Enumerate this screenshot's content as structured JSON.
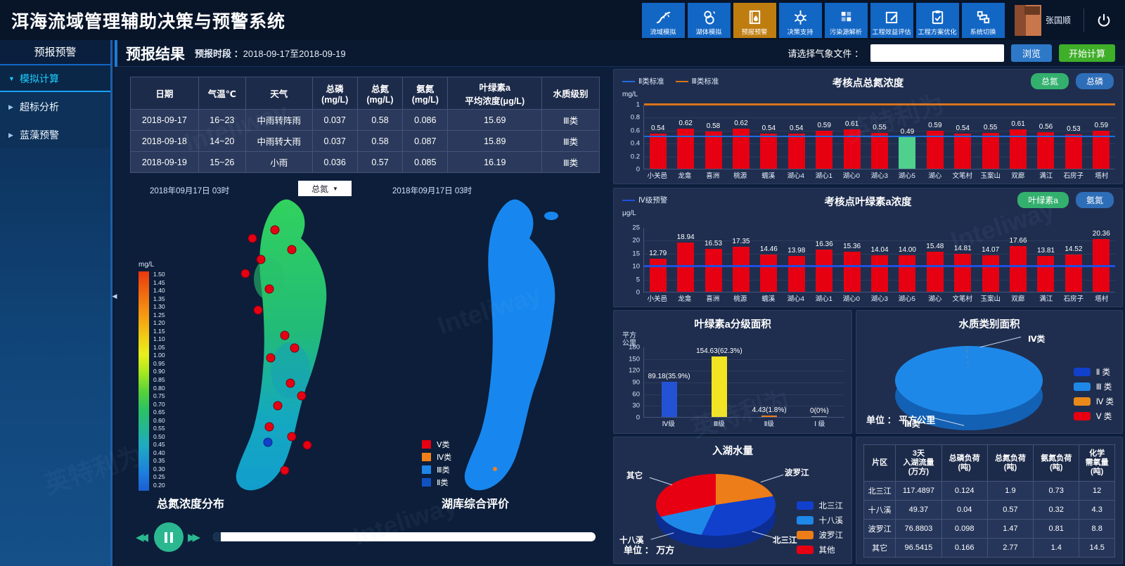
{
  "watermark": {
    "latin": "Inteliway",
    "cjk": "英特利为"
  },
  "header": {
    "title": "洱海流域管理辅助决策与预警系统",
    "user": "张国顺",
    "nav": [
      {
        "label": "流域模拟",
        "icon": "river-icon",
        "active": false
      },
      {
        "label": "湖体模拟",
        "icon": "lake-icon",
        "active": false
      },
      {
        "label": "预报预警",
        "icon": "forecast-icon",
        "active": true
      },
      {
        "label": "决策支持",
        "icon": "gear-icon",
        "active": false
      },
      {
        "label": "污染源解析",
        "icon": "grid-icon",
        "active": false
      },
      {
        "label": "工程效益评估",
        "icon": "edit-icon",
        "active": false
      },
      {
        "label": "工程方案优化",
        "icon": "clipboard-icon",
        "active": false
      },
      {
        "label": "系统切换",
        "icon": "switch-icon",
        "active": false
      }
    ]
  },
  "sidebar": {
    "title": "预报预警",
    "items": [
      {
        "label": "模拟计算",
        "active": true
      },
      {
        "label": "超标分析",
        "active": false
      },
      {
        "label": "蓝藻预警",
        "active": false
      }
    ]
  },
  "toolbar": {
    "title": "预报结果",
    "period_label": "预报时段 ：",
    "period": "2018-09-17至2018-09-19",
    "file_label": "请选择气象文件 ：",
    "browse": "浏览",
    "start": "开始计算"
  },
  "forecast_table": {
    "headers": [
      "日期",
      "气温℃",
      "天气",
      "总磷\n(mg/L)",
      "总氮\n(mg/L)",
      "氨氮\n(mg/L)",
      "叶绿素a\n平均浓度(μg/L)",
      "水质级别"
    ],
    "rows": [
      [
        "2018-09-17",
        "16~23",
        "中雨转阵雨",
        "0.037",
        "0.58",
        "0.086",
        "15.69",
        "Ⅲ类"
      ],
      [
        "2018-09-18",
        "14~20",
        "中雨转大雨",
        "0.037",
        "0.58",
        "0.087",
        "15.89",
        "Ⅲ类"
      ],
      [
        "2018-09-19",
        "15~26",
        "小雨",
        "0.036",
        "0.57",
        "0.085",
        "16.19",
        "Ⅲ类"
      ]
    ]
  },
  "maps": {
    "left": {
      "timestamp": "2018年09月17日 03时",
      "dropdown": "总氮",
      "caption": "总氮浓度分布",
      "colorbar_unit": "mg/L",
      "colorbar_ticks": [
        "1.50",
        "1.45",
        "1.40",
        "1.35",
        "1.30",
        "1.25",
        "1.20",
        "1.15",
        "1.10",
        "1.05",
        "1.00",
        "0.95",
        "0.90",
        "0.85",
        "0.80",
        "0.75",
        "0.70",
        "0.65",
        "0.60",
        "0.55",
        "0.50",
        "0.45",
        "0.40",
        "0.35",
        "0.30",
        "0.25",
        "0.20"
      ],
      "points_red": [
        [
          96,
          62
        ],
        [
          128,
          50
        ],
        [
          152,
          78
        ],
        [
          108,
          92
        ],
        [
          86,
          112
        ],
        [
          120,
          134
        ],
        [
          104,
          164
        ],
        [
          142,
          200
        ],
        [
          156,
          218
        ],
        [
          122,
          232
        ],
        [
          150,
          268
        ],
        [
          166,
          286
        ],
        [
          132,
          300
        ],
        [
          120,
          330
        ],
        [
          152,
          344
        ],
        [
          174,
          356
        ],
        [
          142,
          392
        ]
      ],
      "points_blue": [
        [
          118,
          352
        ]
      ]
    },
    "right": {
      "timestamp": "2018年09月17日 03时",
      "caption": "湖库综合评价",
      "legend": [
        {
          "label": "Ⅴ类",
          "color": "#e60012"
        },
        {
          "label": "Ⅳ类",
          "color": "#f18019"
        },
        {
          "label": "Ⅲ类",
          "color": "#1e86e8"
        },
        {
          "label": "Ⅱ类",
          "color": "#0f52c0"
        }
      ]
    }
  },
  "charts": {
    "tn": {
      "type": "bar",
      "title": "考核点总氮浓度",
      "unit": "mg/L",
      "buttons": [
        {
          "label": "总氮",
          "color": "#33b06e"
        },
        {
          "label": "总磷",
          "color": "#2e6db8"
        }
      ],
      "ref_lines": [
        {
          "label": "Ⅱ类标准",
          "color": "#1f6be0",
          "value": 0.5,
          "thick": 2
        },
        {
          "label": "Ⅲ类标准",
          "color": "#d9731a",
          "value": 1.0,
          "thick": 3
        }
      ],
      "ymax": 1,
      "yticks": [
        "1",
        "0.8",
        "0.6",
        "0.4",
        "0.2",
        "0"
      ],
      "categories": [
        "小关邑",
        "龙龛",
        "喜洲",
        "桃源",
        "蠕溪",
        "湖心4",
        "湖心1",
        "湖心0",
        "湖心3",
        "湖心5",
        "湖心",
        "文笔村",
        "玉案山",
        "双廊",
        "满江",
        "石房子",
        "塔村"
      ],
      "values": [
        "0.54",
        "0.62",
        "0.58",
        "0.62",
        "0.54",
        "0.54",
        "0.59",
        "0.61",
        "0.55",
        "0.49",
        "0.59",
        "0.54",
        "0.55",
        "0.61",
        "0.56",
        "0.53",
        "0.59"
      ],
      "bar_color": "#e60012",
      "highlight_index": 9,
      "highlight_color": "#4fd08c"
    },
    "chla": {
      "type": "bar",
      "title": "考核点叶绿素a浓度",
      "unit": "μg/L",
      "buttons": [
        {
          "label": "叶绿素a",
          "color": "#33b06e"
        },
        {
          "label": "氨氮",
          "color": "#2e6db8"
        }
      ],
      "ref_lines": [
        {
          "label": "Ⅳ级预警",
          "color": "#1f4fe0",
          "value": 10,
          "thick": 3
        }
      ],
      "ymax": 25,
      "yticks": [
        "25",
        "20",
        "15",
        "10",
        "5",
        "0"
      ],
      "categories": [
        "小关邑",
        "龙龛",
        "喜洲",
        "桃源",
        "蠕溪",
        "湖心4",
        "湖心1",
        "湖心0",
        "湖心3",
        "湖心5",
        "湖心",
        "文笔村",
        "玉案山",
        "双廊",
        "满江",
        "石房子",
        "塔村"
      ],
      "values": [
        "12.79",
        "18.94",
        "16.53",
        "17.35",
        "14.46",
        "13.98",
        "16.36",
        "15.36",
        "14.04",
        "14.00",
        "15.48",
        "14.81",
        "14.07",
        "17.66",
        "13.81",
        "14.52",
        "20.36"
      ],
      "bar_color": "#e60012",
      "highlight_index": -1,
      "highlight_color": "#e60012"
    },
    "chla_area": {
      "type": "bar",
      "title": "叶绿素a分级面积",
      "unit": "平方\n公里",
      "buttons": [],
      "ref_lines": [],
      "ymax": 180,
      "yticks": [
        "180",
        "150",
        "120",
        "90",
        "60",
        "30",
        "0"
      ],
      "categories": [
        "Ⅳ级",
        "Ⅲ级",
        "Ⅱ级",
        "Ⅰ 级"
      ],
      "values": [
        "89.18",
        "154.63",
        "4.43",
        "0"
      ],
      "labels": [
        "89.18(35.9%)",
        "154.63(62.3%)",
        "4.43(1.8%)",
        "0(0%)"
      ],
      "colors": [
        "#2353d4",
        "#f2e422",
        "#ed7d18",
        "#8899aa"
      ],
      "bar_color": "#2353d4",
      "highlight_index": -1,
      "highlight_color": "#2353d4"
    },
    "wq_pie": {
      "type": "pie",
      "title": "水质类别面积",
      "unit_label": "单位 ：",
      "unit": "平方公里",
      "slices": [
        {
          "label": "Ⅳ类",
          "color": "#e8891a",
          "pct": 1.2
        },
        {
          "label": "Ⅲ类",
          "color": "#1e88e8",
          "pct": 98.8
        }
      ],
      "legend": [
        {
          "label": "Ⅱ 类",
          "color": "#1140cc"
        },
        {
          "label": "Ⅲ 类",
          "color": "#1e88e8"
        },
        {
          "label": "Ⅳ 类",
          "color": "#e8891a"
        },
        {
          "label": "Ⅴ 类",
          "color": "#e60012"
        }
      ]
    },
    "inflow_pie": {
      "type": "pie",
      "title": "入湖水量",
      "unit_label": "单位 ：",
      "unit": "万方",
      "slices": [
        {
          "label": "波罗江",
          "color": "#ed7d18",
          "pct": 22.6
        },
        {
          "label": "北三江",
          "color": "#1140cc",
          "pct": 34.5
        },
        {
          "label": "十八溪",
          "color": "#1e88e8",
          "pct": 14.5
        },
        {
          "label": "其它",
          "color": "#e60012",
          "pct": 28.4
        }
      ],
      "legend": [
        {
          "label": "北三江",
          "color": "#1140cc"
        },
        {
          "label": "十八溪",
          "color": "#1e88e8"
        },
        {
          "label": "波罗江",
          "color": "#ed7d18"
        },
        {
          "label": "其他",
          "color": "#e60012"
        }
      ]
    },
    "load_table": {
      "type": "table",
      "headers": [
        "片区",
        "3天\n入湖流量\n(万方)",
        "总磷负荷\n(吨)",
        "总氮负荷\n(吨)",
        "氨氮负荷\n(吨)",
        "化学\n需氧量\n(吨)"
      ],
      "rows": [
        [
          "北三江",
          "117.4897",
          "0.124",
          "1.9",
          "0.73",
          "12"
        ],
        [
          "十八溪",
          "49.37",
          "0.04",
          "0.57",
          "0.32",
          "4.3"
        ],
        [
          "波罗江",
          "76.8803",
          "0.098",
          "1.47",
          "0.81",
          "8.8"
        ],
        [
          "其它",
          "96.5415",
          "0.166",
          "2.77",
          "1.4",
          "14.5"
        ]
      ]
    }
  }
}
